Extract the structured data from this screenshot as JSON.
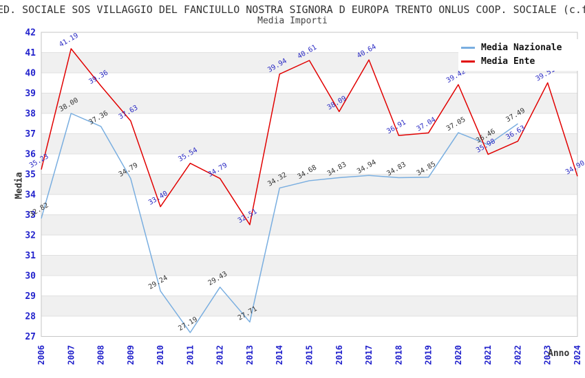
{
  "header": {
    "title": "ED. SOCIALE SOS VILLAGGIO DEL FANCIULLO NOSTRA SIGNORA D EUROPA TRENTO ONLUS COOP. SOCIALE (c.f",
    "subtitle": "Media Importi"
  },
  "axes": {
    "y_label": "Media",
    "x_label": "Anno"
  },
  "legend": {
    "items": [
      {
        "label": "Media Nazionale",
        "color": "#79AEE0"
      },
      {
        "label": "Media Ente",
        "color": "#E10000"
      }
    ]
  },
  "colors": {
    "tick_label_blue": "#2222CC",
    "band_gray": "#F0F0F0",
    "gridline": "#E0E0E0",
    "plot_border": "#C6C6C6",
    "nazionale_line": "#79AEE0",
    "ente_line": "#E10000",
    "nazionale_point_label": "#333333",
    "ente_point_label": "#2A2AC4"
  },
  "chart_data": {
    "type": "line",
    "title": "Media Importi",
    "xlabel": "Anno",
    "ylabel": "Media",
    "x": [
      2006,
      2007,
      2008,
      2009,
      2010,
      2011,
      2012,
      2013,
      2014,
      2015,
      2016,
      2017,
      2018,
      2019,
      2020,
      2021,
      2022,
      2023,
      2024
    ],
    "ylim": [
      27,
      42
    ],
    "y_tick_step": 1,
    "grid": "horizontal-bands-alternating",
    "legend_position": "top-right",
    "series": [
      {
        "name": "Media Nazionale",
        "color": "#79AEE0",
        "label_color": "#333333",
        "x": [
          2006,
          2007,
          2008,
          2009,
          2010,
          2011,
          2012,
          2013,
          2014,
          2015,
          2016,
          2017,
          2018,
          2019,
          2020,
          2021,
          2022
        ],
        "values": [
          32.82,
          38.0,
          37.36,
          34.79,
          29.24,
          27.19,
          29.43,
          27.71,
          34.32,
          34.68,
          34.83,
          34.94,
          34.83,
          34.85,
          37.05,
          36.46,
          37.49
        ],
        "labels": [
          "32.82",
          "38.00",
          "37.36",
          "34.79",
          "29.24",
          "27.19",
          "29.43",
          "27.71",
          "34.32",
          "34.68",
          "34.83",
          "34.94",
          "34.83",
          "34.85",
          "37.05",
          "36.46",
          "37.49"
        ]
      },
      {
        "name": "Media Ente",
        "color": "#E10000",
        "label_color": "#2A2AC4",
        "x": [
          2006,
          2007,
          2008,
          2009,
          2010,
          2011,
          2012,
          2013,
          2014,
          2015,
          2016,
          2017,
          2018,
          2019,
          2020,
          2021,
          2022,
          2023,
          2024
        ],
        "values": [
          35.23,
          41.19,
          39.36,
          37.63,
          33.4,
          35.54,
          34.79,
          32.51,
          39.94,
          40.61,
          38.09,
          40.64,
          36.91,
          37.04,
          39.42,
          35.98,
          36.63,
          39.51,
          34.9
        ],
        "labels": [
          "35.23",
          "41.19",
          "39.36",
          "37.63",
          "33.40",
          "35.54",
          "34.79",
          "32.51",
          "39.94",
          "40.61",
          "38.09",
          "40.64",
          "36.91",
          "37.04",
          "39.42",
          "35.98",
          "36.63",
          "39.51",
          "34.90"
        ]
      }
    ]
  }
}
